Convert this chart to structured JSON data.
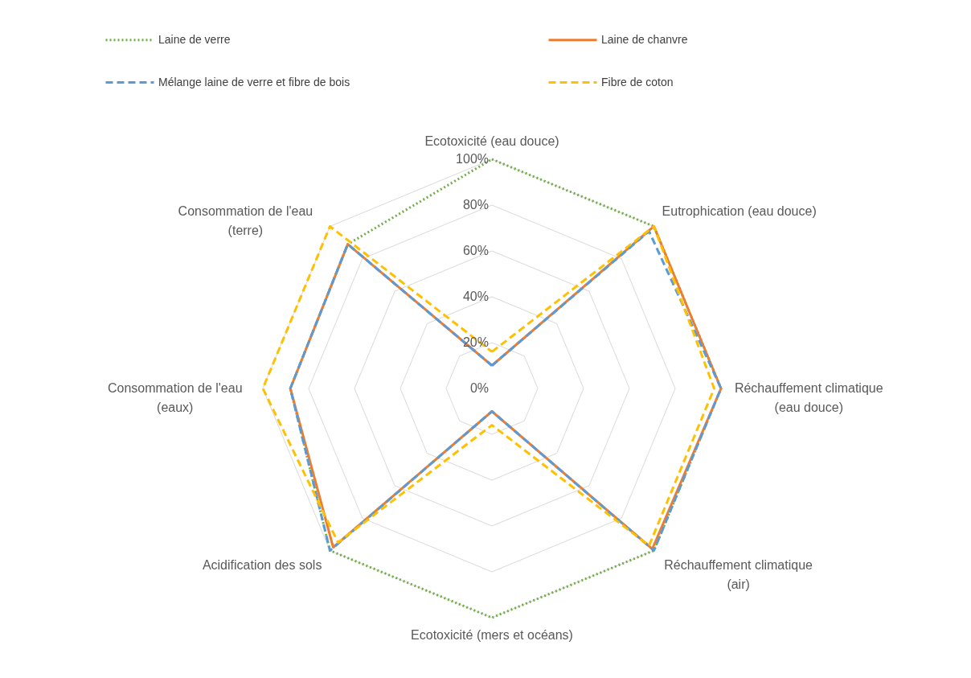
{
  "chart_data": {
    "type": "radar",
    "categories": [
      "Ecotoxicité (eau douce)",
      "Eutrophication (eau douce)",
      "Réchauffement climatique (eau douce)",
      "Réchauffement climatique (air)",
      "Ecotoxicité (mers et océans)",
      "Acidification des sols",
      "Consommation de l'eau (eaux)",
      "Consommation de l'eau (terre)"
    ],
    "series": [
      {
        "name": "Laine de verre",
        "color": "#70ad47",
        "line_style": "dotted",
        "values": [
          100,
          100,
          100,
          100,
          100,
          100,
          88,
          89
        ]
      },
      {
        "name": "Laine de chanvre",
        "color": "#ed7d31",
        "line_style": "solid",
        "values": [
          10,
          100,
          100,
          99,
          10,
          98,
          88,
          89
        ]
      },
      {
        "name": "Mélange laine de verre et fibre de bois",
        "color": "#5b9bd5",
        "line_style": "dashed",
        "values": [
          10,
          97,
          100,
          100,
          10,
          100,
          88,
          89
        ]
      },
      {
        "name": "Fibre de coton",
        "color": "#ffc000",
        "line_style": "dashed",
        "values": [
          16,
          100,
          97,
          97,
          16,
          95,
          100,
          100
        ]
      }
    ],
    "ylim": [
      0,
      100
    ],
    "yticks": [
      {
        "value": 0,
        "label": "0%"
      },
      {
        "value": 20,
        "label": "20%"
      },
      {
        "value": 40,
        "label": "40%"
      },
      {
        "value": 60,
        "label": "60%"
      },
      {
        "value": 80,
        "label": "80%"
      },
      {
        "value": 100,
        "label": "100%"
      }
    ],
    "grid": true,
    "legend": "top"
  }
}
